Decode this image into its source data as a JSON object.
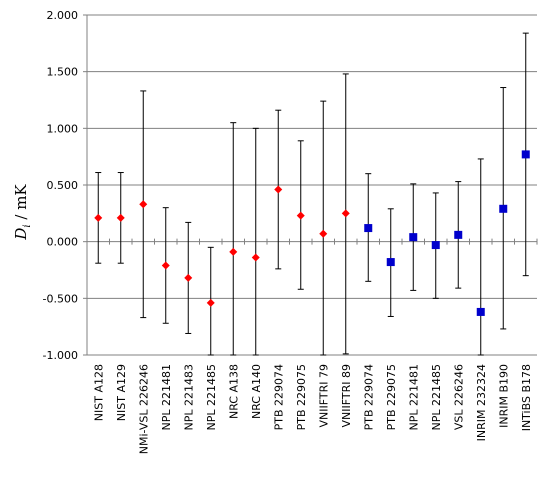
{
  "chart_data": {
    "type": "scatter",
    "ylabel": "D_i / mK",
    "ylim": [
      -1.0,
      2.0
    ],
    "yticks": [
      "2.000",
      "1.500",
      "1.000",
      "0.500",
      "0.000",
      "-0.500",
      "-1.000"
    ],
    "ytick_values": [
      2.0,
      1.5,
      1.0,
      0.5,
      0.0,
      -0.5,
      -1.0
    ],
    "grid": "horizontal",
    "categories": [
      "NIST A128",
      "NIST A129",
      "NMi-VSL 226246",
      "NPL 221481",
      "NPL 221483",
      "NPL 221485",
      "NRC A138",
      "NRC A140",
      "PTB 229074",
      "PTB 229075",
      "VNIIFTRI 79",
      "VNIIFTRI 89",
      "PTB 229074",
      "PTB 229075",
      "NPL 221481",
      "NPL 221485",
      "VSL 226246",
      "INRIM 232324",
      "INRIM B190",
      "INTiBS B178"
    ],
    "series": [
      {
        "marker": "diamond",
        "color": "#ff0000",
        "points": [
          {
            "i": 0,
            "y": 0.21,
            "low": -0.19,
            "high": 0.61
          },
          {
            "i": 1,
            "y": 0.21,
            "low": -0.19,
            "high": 0.61
          },
          {
            "i": 2,
            "y": 0.33,
            "low": -0.67,
            "high": 1.33
          },
          {
            "i": 3,
            "y": -0.21,
            "low": -0.72,
            "high": 0.3
          },
          {
            "i": 4,
            "y": -0.32,
            "low": -0.81,
            "high": 0.17
          },
          {
            "i": 5,
            "y": -0.54,
            "low": -1.0,
            "high": -0.05
          },
          {
            "i": 6,
            "y": -0.09,
            "low": -1.0,
            "high": 1.05
          },
          {
            "i": 7,
            "y": -0.14,
            "low": -1.0,
            "high": 1.0
          },
          {
            "i": 8,
            "y": 0.46,
            "low": -0.24,
            "high": 1.16
          },
          {
            "i": 9,
            "y": 0.23,
            "low": -0.42,
            "high": 0.89
          },
          {
            "i": 10,
            "y": 0.07,
            "low": -1.0,
            "high": 1.24
          },
          {
            "i": 11,
            "y": 0.25,
            "low": -0.99,
            "high": 1.48
          }
        ]
      },
      {
        "marker": "square",
        "color": "#0000cc",
        "points": [
          {
            "i": 12,
            "y": 0.12,
            "low": -0.35,
            "high": 0.6
          },
          {
            "i": 13,
            "y": -0.18,
            "low": -0.66,
            "high": 0.29
          },
          {
            "i": 14,
            "y": 0.04,
            "low": -0.43,
            "high": 0.51
          },
          {
            "i": 15,
            "y": -0.03,
            "low": -0.5,
            "high": 0.43
          },
          {
            "i": 16,
            "y": 0.06,
            "low": -0.41,
            "high": 0.53
          },
          {
            "i": 17,
            "y": -0.62,
            "low": -1.0,
            "high": 0.73
          },
          {
            "i": 18,
            "y": 0.29,
            "low": -0.77,
            "high": 1.36
          },
          {
            "i": 19,
            "y": 0.77,
            "low": -0.3,
            "high": 1.84
          }
        ]
      }
    ]
  }
}
